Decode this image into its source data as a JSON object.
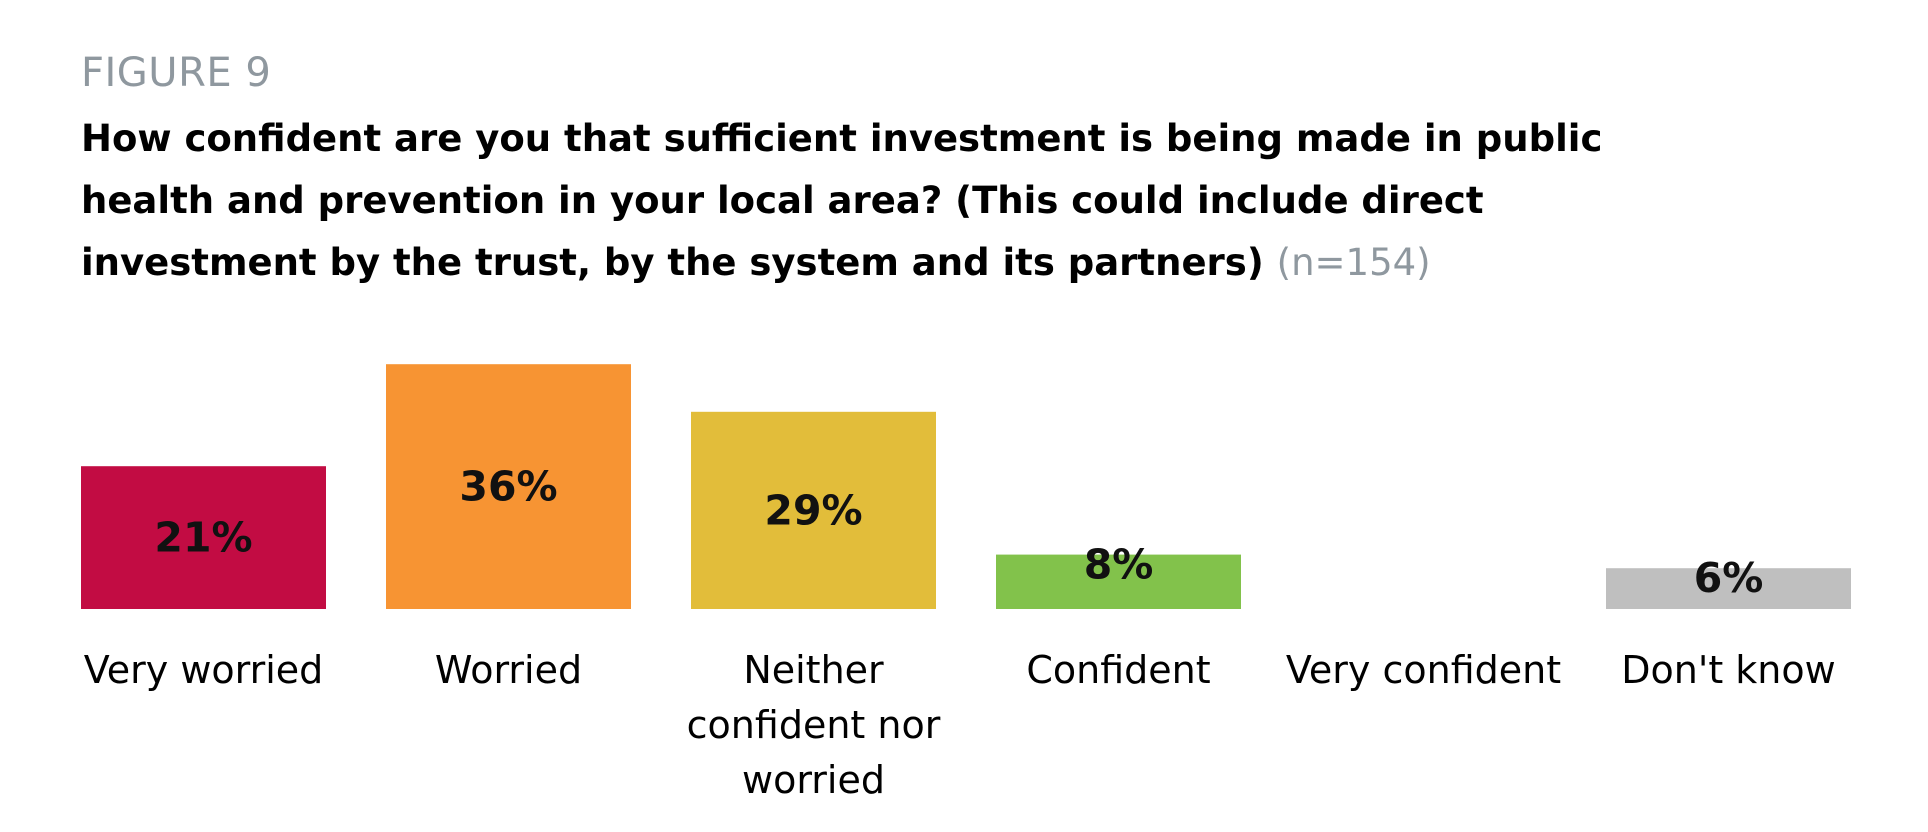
{
  "figure_label": "FIGURE 9",
  "title": "How confident are you that sufficient investment is being made in public health and prevention in your local area? (This could include direct investment by the trust, by the system and its partners)",
  "sample_size": "(n=154)",
  "chart_data": {
    "type": "bar",
    "categories": [
      "Very worried",
      "Worried",
      "Neither confident nor worried",
      "Confident",
      "Very confident",
      "Don't know"
    ],
    "values": [
      21,
      36,
      29,
      8,
      0,
      6
    ],
    "data_labels": [
      "21%",
      "36%",
      "29%",
      "8%",
      "",
      "6%"
    ],
    "colors": [
      "#c20c43",
      "#f79433",
      "#e2bd3a",
      "#82c24b",
      "#ffffff",
      "#bfbfbf"
    ],
    "ylim": [
      0,
      40
    ],
    "grid": false
  }
}
